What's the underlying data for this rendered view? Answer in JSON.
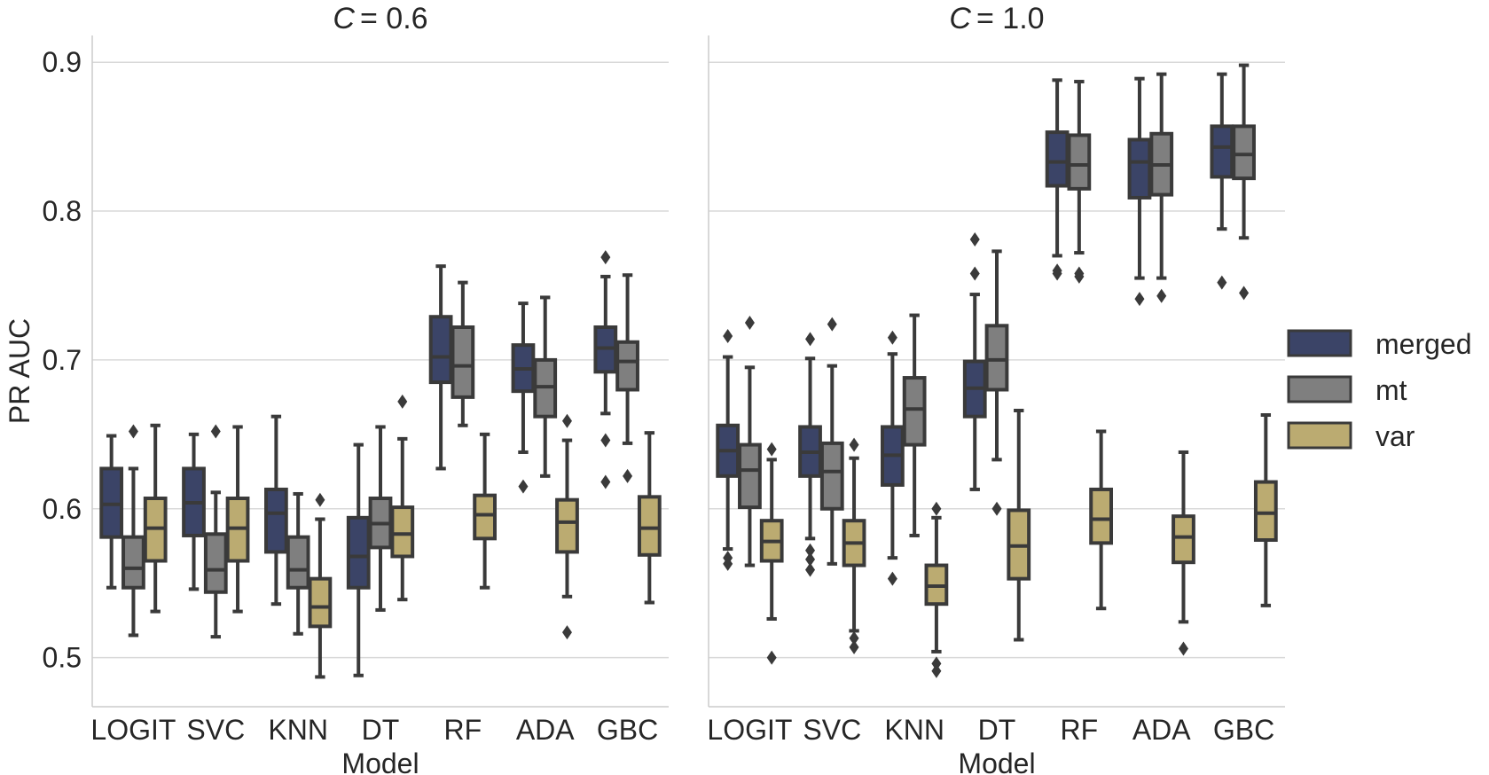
{
  "chart_data": [
    {
      "type": "box",
      "title": "C = 0.6",
      "title_var": "C",
      "title_value": "= 0.6",
      "xlabel": "Model",
      "ylabel": "PR AUC",
      "ylim": [
        0.467,
        0.918
      ],
      "yticks": [
        0.5,
        0.6,
        0.7,
        0.8,
        0.9
      ],
      "ytick_labels": [
        "0.5",
        "0.6",
        "0.7",
        "0.8",
        "0.9"
      ],
      "categories": [
        "LOGIT",
        "SVC",
        "KNN",
        "DT",
        "RF",
        "ADA",
        "GBC"
      ],
      "grid": true,
      "series": [
        {
          "name": "merged",
          "color": "#3b4467",
          "boxes": [
            {
              "whislo": 0.547,
              "q1": 0.581,
              "med": 0.603,
              "q3": 0.627,
              "whishi": 0.649,
              "fliers": []
            },
            {
              "whislo": 0.546,
              "q1": 0.582,
              "med": 0.604,
              "q3": 0.627,
              "whishi": 0.65,
              "fliers": []
            },
            {
              "whislo": 0.536,
              "q1": 0.571,
              "med": 0.597,
              "q3": 0.613,
              "whishi": 0.662,
              "fliers": []
            },
            {
              "whislo": 0.488,
              "q1": 0.547,
              "med": 0.568,
              "q3": 0.594,
              "whishi": 0.643,
              "fliers": []
            },
            {
              "whislo": 0.627,
              "q1": 0.685,
              "med": 0.702,
              "q3": 0.729,
              "whishi": 0.763,
              "fliers": []
            },
            {
              "whislo": 0.638,
              "q1": 0.679,
              "med": 0.694,
              "q3": 0.71,
              "whishi": 0.738,
              "fliers": [
                0.615
              ]
            },
            {
              "whislo": 0.664,
              "q1": 0.692,
              "med": 0.708,
              "q3": 0.722,
              "whishi": 0.756,
              "fliers": [
                0.769,
                0.646,
                0.618
              ]
            }
          ]
        },
        {
          "name": "mt",
          "color": "#7f7f7f",
          "boxes": [
            {
              "whislo": 0.515,
              "q1": 0.547,
              "med": 0.56,
              "q3": 0.581,
              "whishi": 0.627,
              "fliers": [
                0.652
              ]
            },
            {
              "whislo": 0.514,
              "q1": 0.544,
              "med": 0.559,
              "q3": 0.583,
              "whishi": 0.611,
              "fliers": [
                0.652
              ]
            },
            {
              "whislo": 0.516,
              "q1": 0.547,
              "med": 0.559,
              "q3": 0.581,
              "whishi": 0.61,
              "fliers": []
            },
            {
              "whislo": 0.532,
              "q1": 0.574,
              "med": 0.59,
              "q3": 0.607,
              "whishi": 0.655,
              "fliers": []
            },
            {
              "whislo": 0.656,
              "q1": 0.675,
              "med": 0.696,
              "q3": 0.722,
              "whishi": 0.752,
              "fliers": []
            },
            {
              "whislo": 0.622,
              "q1": 0.662,
              "med": 0.682,
              "q3": 0.7,
              "whishi": 0.742,
              "fliers": []
            },
            {
              "whislo": 0.644,
              "q1": 0.68,
              "med": 0.699,
              "q3": 0.712,
              "whishi": 0.757,
              "fliers": [
                0.622
              ]
            }
          ]
        },
        {
          "name": "var",
          "color": "#bbab71",
          "boxes": [
            {
              "whislo": 0.531,
              "q1": 0.565,
              "med": 0.587,
              "q3": 0.607,
              "whishi": 0.656,
              "fliers": []
            },
            {
              "whislo": 0.531,
              "q1": 0.565,
              "med": 0.587,
              "q3": 0.607,
              "whishi": 0.655,
              "fliers": []
            },
            {
              "whislo": 0.487,
              "q1": 0.521,
              "med": 0.534,
              "q3": 0.553,
              "whishi": 0.593,
              "fliers": [
                0.606
              ]
            },
            {
              "whislo": 0.539,
              "q1": 0.568,
              "med": 0.583,
              "q3": 0.601,
              "whishi": 0.647,
              "fliers": [
                0.672
              ]
            },
            {
              "whislo": 0.547,
              "q1": 0.58,
              "med": 0.596,
              "q3": 0.609,
              "whishi": 0.65,
              "fliers": []
            },
            {
              "whislo": 0.541,
              "q1": 0.571,
              "med": 0.591,
              "q3": 0.606,
              "whishi": 0.646,
              "fliers": [
                0.659,
                0.517
              ]
            },
            {
              "whislo": 0.537,
              "q1": 0.569,
              "med": 0.587,
              "q3": 0.608,
              "whishi": 0.651,
              "fliers": []
            }
          ]
        }
      ]
    },
    {
      "type": "box",
      "title": "C = 1.0",
      "title_var": "C",
      "title_value": "= 1.0",
      "xlabel": "Model",
      "ylabel": "",
      "ylim": [
        0.467,
        0.918
      ],
      "yticks": [
        0.5,
        0.6,
        0.7,
        0.8,
        0.9
      ],
      "categories": [
        "LOGIT",
        "SVC",
        "KNN",
        "DT",
        "RF",
        "ADA",
        "GBC"
      ],
      "grid": true,
      "series": [
        {
          "name": "merged",
          "color": "#3b4467",
          "boxes": [
            {
              "whislo": 0.573,
              "q1": 0.622,
              "med": 0.639,
              "q3": 0.656,
              "whishi": 0.702,
              "fliers": [
                0.716,
                0.567,
                0.563
              ]
            },
            {
              "whislo": 0.58,
              "q1": 0.622,
              "med": 0.638,
              "q3": 0.655,
              "whishi": 0.701,
              "fliers": [
                0.714,
                0.572,
                0.566,
                0.559
              ]
            },
            {
              "whislo": 0.567,
              "q1": 0.616,
              "med": 0.636,
              "q3": 0.655,
              "whishi": 0.704,
              "fliers": [
                0.715,
                0.553
              ]
            },
            {
              "whislo": 0.613,
              "q1": 0.662,
              "med": 0.681,
              "q3": 0.699,
              "whishi": 0.744,
              "fliers": [
                0.781,
                0.758
              ]
            },
            {
              "whislo": 0.77,
              "q1": 0.817,
              "med": 0.833,
              "q3": 0.853,
              "whishi": 0.888,
              "fliers": [
                0.758,
                0.76
              ]
            },
            {
              "whislo": 0.755,
              "q1": 0.809,
              "med": 0.833,
              "q3": 0.848,
              "whishi": 0.889,
              "fliers": [
                0.741
              ]
            },
            {
              "whislo": 0.788,
              "q1": 0.823,
              "med": 0.843,
              "q3": 0.857,
              "whishi": 0.892,
              "fliers": [
                0.752
              ]
            }
          ]
        },
        {
          "name": "mt",
          "color": "#7f7f7f",
          "boxes": [
            {
              "whislo": 0.562,
              "q1": 0.601,
              "med": 0.626,
              "q3": 0.643,
              "whishi": 0.695,
              "fliers": [
                0.725
              ]
            },
            {
              "whislo": 0.563,
              "q1": 0.6,
              "med": 0.625,
              "q3": 0.644,
              "whishi": 0.696,
              "fliers": [
                0.724
              ]
            },
            {
              "whislo": 0.582,
              "q1": 0.643,
              "med": 0.667,
              "q3": 0.688,
              "whishi": 0.73,
              "fliers": []
            },
            {
              "whislo": 0.633,
              "q1": 0.68,
              "med": 0.7,
              "q3": 0.723,
              "whishi": 0.773,
              "fliers": [
                0.6
              ]
            },
            {
              "whislo": 0.772,
              "q1": 0.815,
              "med": 0.831,
              "q3": 0.851,
              "whishi": 0.887,
              "fliers": [
                0.756,
                0.758
              ]
            },
            {
              "whislo": 0.755,
              "q1": 0.811,
              "med": 0.831,
              "q3": 0.852,
              "whishi": 0.892,
              "fliers": [
                0.743
              ]
            },
            {
              "whislo": 0.782,
              "q1": 0.822,
              "med": 0.838,
              "q3": 0.857,
              "whishi": 0.898,
              "fliers": [
                0.745
              ]
            }
          ]
        },
        {
          "name": "var",
          "color": "#bbab71",
          "boxes": [
            {
              "whislo": 0.526,
              "q1": 0.565,
              "med": 0.578,
              "q3": 0.592,
              "whishi": 0.633,
              "fliers": [
                0.64,
                0.5
              ]
            },
            {
              "whislo": 0.518,
              "q1": 0.562,
              "med": 0.577,
              "q3": 0.592,
              "whishi": 0.634,
              "fliers": [
                0.643,
                0.513,
                0.507
              ]
            },
            {
              "whislo": 0.504,
              "q1": 0.536,
              "med": 0.548,
              "q3": 0.562,
              "whishi": 0.594,
              "fliers": [
                0.6,
                0.496,
                0.491
              ]
            },
            {
              "whislo": 0.512,
              "q1": 0.553,
              "med": 0.575,
              "q3": 0.599,
              "whishi": 0.666,
              "fliers": []
            },
            {
              "whislo": 0.533,
              "q1": 0.577,
              "med": 0.593,
              "q3": 0.613,
              "whishi": 0.652,
              "fliers": []
            },
            {
              "whislo": 0.524,
              "q1": 0.564,
              "med": 0.581,
              "q3": 0.595,
              "whishi": 0.638,
              "fliers": [
                0.506
              ]
            },
            {
              "whislo": 0.535,
              "q1": 0.579,
              "med": 0.597,
              "q3": 0.618,
              "whishi": 0.663,
              "fliers": []
            }
          ]
        }
      ]
    }
  ],
  "legend": {
    "placement": "right",
    "entries": [
      {
        "label": "merged",
        "color": "#3b4467"
      },
      {
        "label": "mt",
        "color": "#7f7f7f"
      },
      {
        "label": "var",
        "color": "#bbab71"
      }
    ]
  }
}
